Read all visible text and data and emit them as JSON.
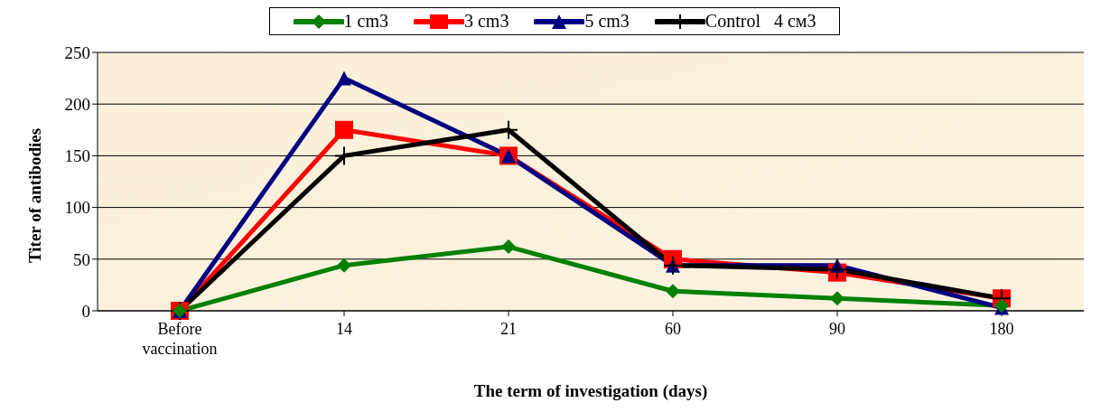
{
  "chart_data": {
    "type": "line",
    "xlabel": "The term of investigation (days)",
    "ylabel": "Titer of antibodies",
    "categories": [
      "Before vaccination",
      "14",
      "21",
      "60",
      "90",
      "180"
    ],
    "series": [
      {
        "name": "1 cm3",
        "color": "#008000",
        "marker": "diamond",
        "values": [
          0,
          44,
          62,
          19,
          12,
          5
        ]
      },
      {
        "name": "3 cm3",
        "color": "#ff0000",
        "marker": "square",
        "values": [
          0,
          175,
          150,
          50,
          37,
          12
        ]
      },
      {
        "name": "5 cm3",
        "color": "#000080",
        "marker": "triangle",
        "values": [
          0,
          225,
          150,
          44,
          44,
          3
        ]
      },
      {
        "name": "Control   4 см3",
        "color": "#000000",
        "marker": "cross",
        "values": [
          0,
          150,
          175,
          44,
          40,
          12
        ]
      }
    ],
    "ylim": [
      0,
      250
    ],
    "yticks": [
      0,
      50,
      100,
      150,
      200,
      250
    ],
    "grid": "y",
    "legend": "top"
  }
}
